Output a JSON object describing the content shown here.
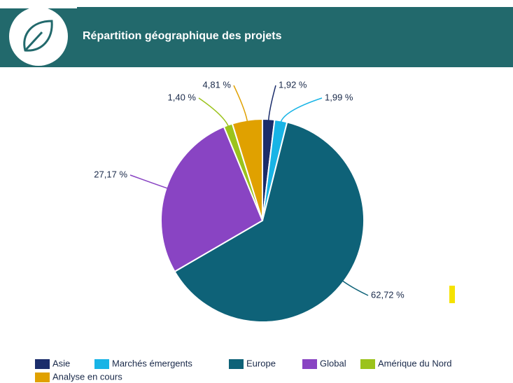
{
  "chart_data": {
    "type": "pie",
    "title": "Répartition géographique des projets",
    "categories": [
      "Asie",
      "Marchés émergents",
      "Europe",
      "Global",
      "Amérique du Nord",
      "Analyse en cours"
    ],
    "values": [
      1.92,
      1.99,
      62.72,
      27.17,
      1.4,
      4.81
    ],
    "value_labels": [
      "1,92 %",
      "1,99 %",
      "62,72 %",
      "27,17 %",
      "1,40 %",
      "4,81 %"
    ],
    "colors": [
      "#1b2d6b",
      "#18b4e6",
      "#0e6278",
      "#8944c3",
      "#9bc31b",
      "#e0a100"
    ]
  }
}
